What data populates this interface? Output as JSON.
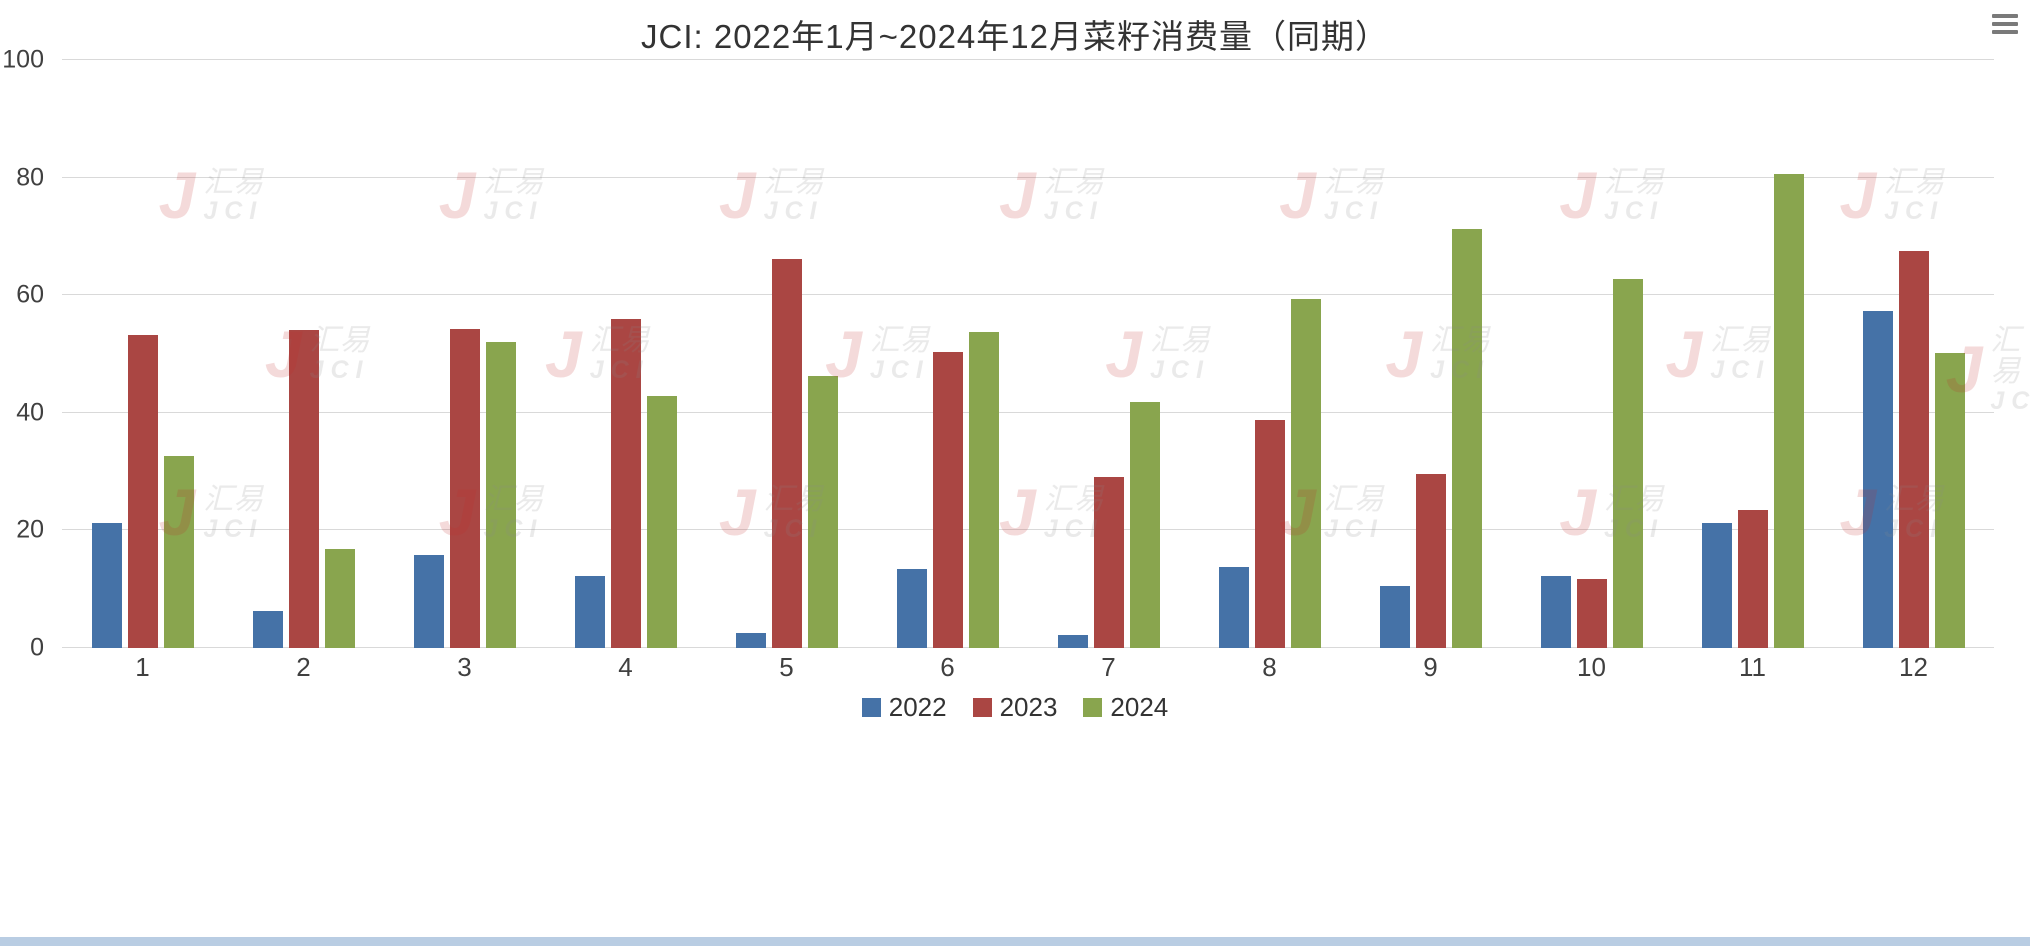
{
  "header": {
    "title": "JCI: 2022年1月~2024年12月菜籽消费量（同期）"
  },
  "watermark": {
    "glyph": "J",
    "cn": "汇易",
    "en": "JCI"
  },
  "chart_data": {
    "type": "bar",
    "title": "JCI: 2022年1月~2024年12月菜籽消费量（同期）",
    "categories": [
      "1",
      "2",
      "3",
      "4",
      "5",
      "6",
      "7",
      "8",
      "9",
      "10",
      "11",
      "12"
    ],
    "series": [
      {
        "name": "2022",
        "color": "#4572A7",
        "values": [
          21.2,
          6.3,
          15.8,
          12.3,
          2.6,
          13.4,
          2.2,
          13.8,
          10.6,
          12.3,
          21.2,
          57.3
        ]
      },
      {
        "name": "2023",
        "color": "#AA4643",
        "values": [
          53.2,
          54.0,
          54.3,
          56.0,
          66.2,
          50.3,
          29.0,
          38.8,
          29.6,
          11.8,
          23.5,
          67.6
        ]
      },
      {
        "name": "2024",
        "color": "#89A54E",
        "values": [
          32.6,
          16.8,
          52.0,
          42.8,
          46.2,
          53.8,
          41.8,
          59.3,
          71.2,
          62.7,
          80.6,
          50.2
        ]
      }
    ],
    "xlabel": "",
    "ylabel": "",
    "ylim": [
      0,
      100
    ],
    "yticks": [
      0,
      20,
      40,
      60,
      80,
      100
    ],
    "grid": true,
    "legend_position": "bottom"
  },
  "colors": {
    "gridline": "#d9d9d9",
    "axis_text": "#404040",
    "bottom_bar": "#b9cde3"
  }
}
